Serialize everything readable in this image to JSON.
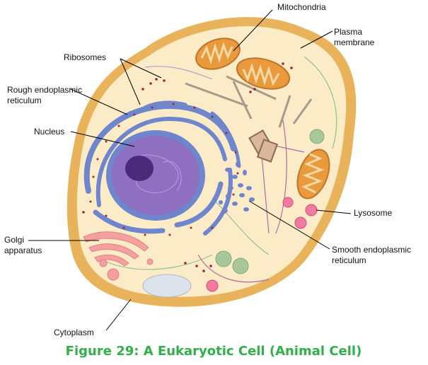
{
  "labels": {
    "mitochondria": "Mitochondria",
    "plasma_membrane_1": "Plasma",
    "plasma_membrane_2": "membrane",
    "ribosomes": "Ribosomes",
    "rough_er_1": "Rough endoplasmic",
    "rough_er_2": "reticulum",
    "nucleus": "Nucleus",
    "lysosome": "Lysosome",
    "golgi_1": "Golgi",
    "golgi_2": "apparatus",
    "smooth_er_1": "Smooth endoplasmic",
    "smooth_er_2": "reticulum",
    "cytoplasm": "Cytoplasm"
  },
  "caption": "Figure 29: A Eukaryotic Cell (Animal Cell)",
  "colors": {
    "cytoplasm": "#fbecc7",
    "membrane": "#e8b35a",
    "nucleus": "#8f6fc0",
    "nucleolus": "#4b2a7a",
    "er": "#6f86cc",
    "mitochondria": "#e99a3c",
    "golgi": "#f2a0a0",
    "lysosome": "#f07aa0",
    "vesicle": "#a8c79a",
    "caption": "#2fb04a"
  }
}
